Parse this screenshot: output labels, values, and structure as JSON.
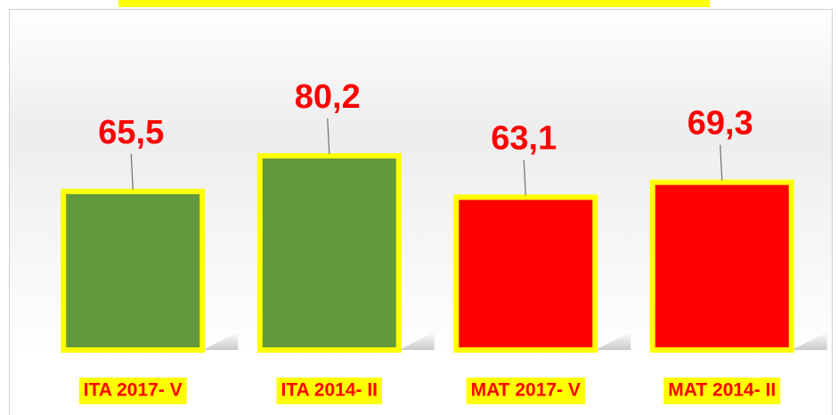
{
  "chart_data": {
    "type": "bar",
    "categories": [
      "ITA 2017- V",
      "ITA 2014- II",
      "MAT 2017- V",
      "MAT 2014- II"
    ],
    "values": [
      65.5,
      80.2,
      63.1,
      69.3
    ],
    "value_labels": [
      "65,5",
      "80,2",
      "63,1",
      "69,3"
    ],
    "colors": [
      "#63993d",
      "#63993d",
      "#ff0000",
      "#ff0000"
    ],
    "border_color": "#ffff00",
    "label_background": "#ffff00"
  }
}
